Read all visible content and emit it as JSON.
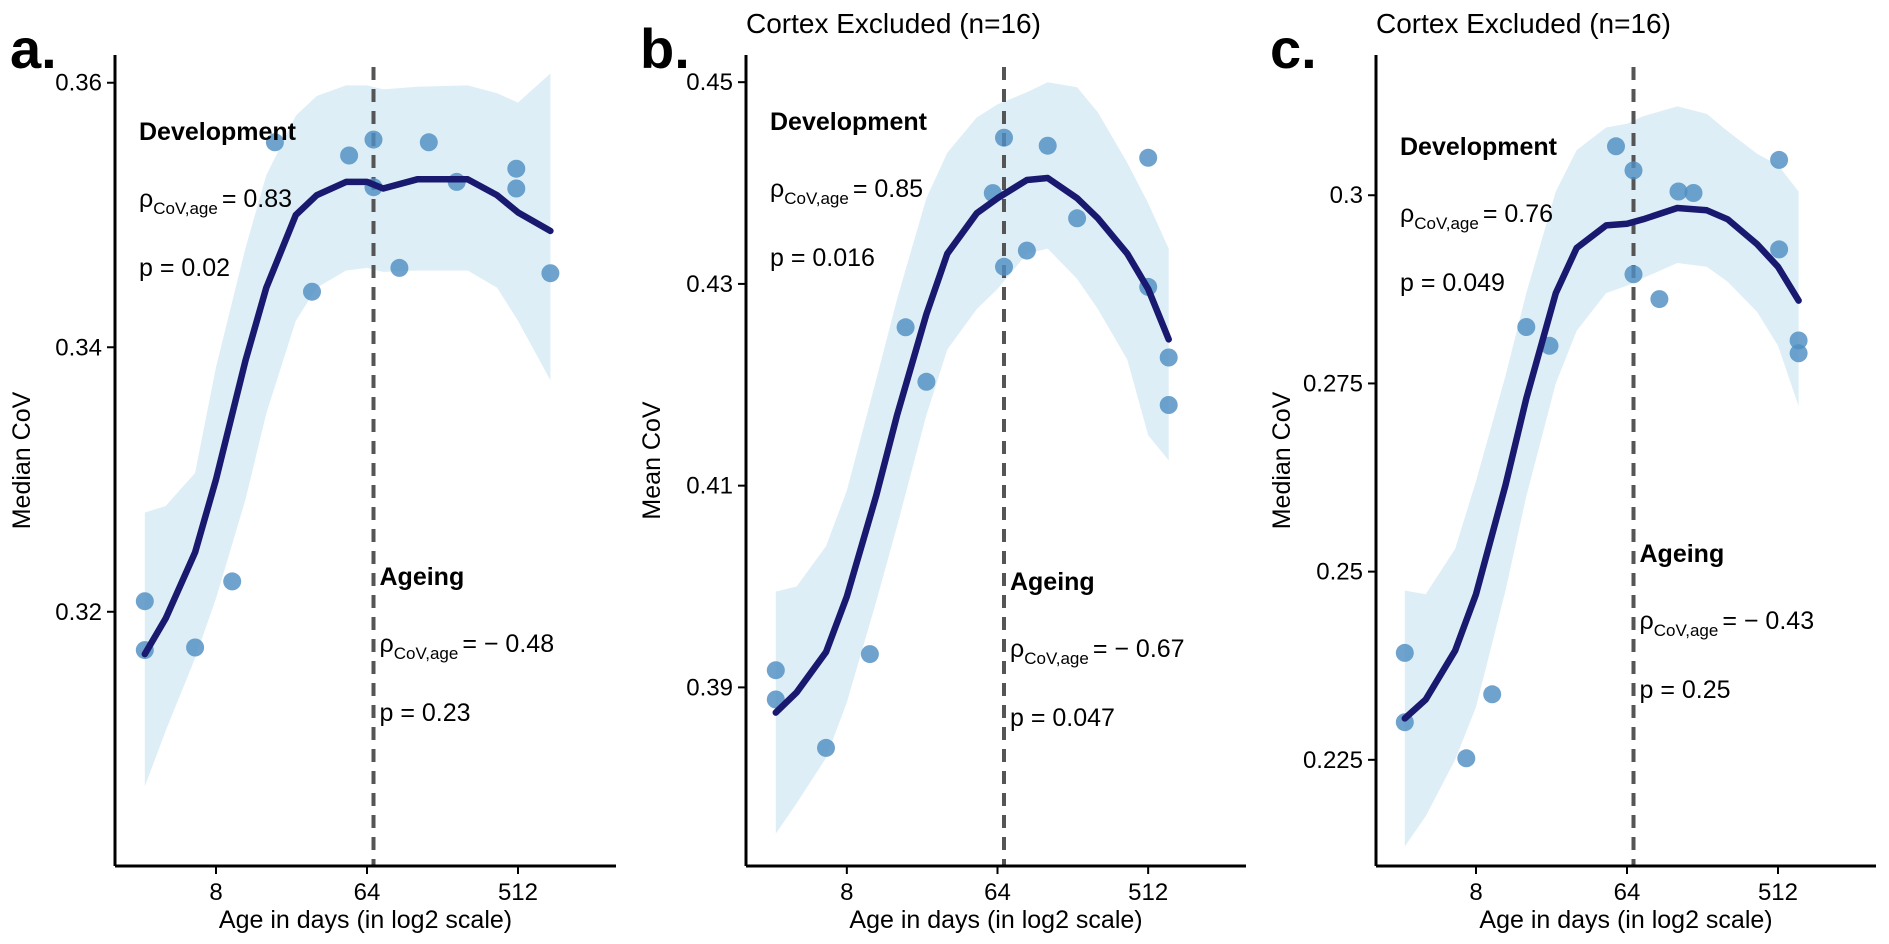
{
  "chart_data": [
    {
      "type": "scatter",
      "panel_label": "a.",
      "title": "",
      "xlabel": "Age in days (in log2 scale)",
      "ylabel": "Median CoV",
      "x_scale": "log2",
      "xticks": [
        8,
        64,
        512
      ],
      "yticks": [
        0.32,
        0.34,
        0.36
      ],
      "ylim": [
        0.3035,
        0.3624
      ],
      "xlim_log2": [
        1.45,
        10.55
      ],
      "grid": false,
      "vline_x": 70,
      "points": [
        {
          "x": 3,
          "y": 0.3208
        },
        {
          "x": 3,
          "y": 0.3171
        },
        {
          "x": 6,
          "y": 0.3173
        },
        {
          "x": 10,
          "y": 0.3223
        },
        {
          "x": 18,
          "y": 0.3555
        },
        {
          "x": 30,
          "y": 0.3442
        },
        {
          "x": 50,
          "y": 0.3545
        },
        {
          "x": 70,
          "y": 0.3557
        },
        {
          "x": 70,
          "y": 0.3521
        },
        {
          "x": 100,
          "y": 0.346
        },
        {
          "x": 150,
          "y": 0.3555
        },
        {
          "x": 220,
          "y": 0.3525
        },
        {
          "x": 500,
          "y": 0.3535
        },
        {
          "x": 500,
          "y": 0.352
        },
        {
          "x": 800,
          "y": 0.3456
        }
      ],
      "fit": [
        {
          "x": 3,
          "y": 0.3168,
          "lo": 0.3068,
          "hi": 0.3275
        },
        {
          "x": 4,
          "y": 0.3195,
          "lo": 0.311,
          "hi": 0.328
        },
        {
          "x": 6,
          "y": 0.3245,
          "lo": 0.3165,
          "hi": 0.3305
        },
        {
          "x": 8,
          "y": 0.33,
          "lo": 0.321,
          "hi": 0.3385
        },
        {
          "x": 12,
          "y": 0.339,
          "lo": 0.3285,
          "hi": 0.3475
        },
        {
          "x": 16,
          "y": 0.3445,
          "lo": 0.335,
          "hi": 0.353
        },
        {
          "x": 24,
          "y": 0.35,
          "lo": 0.342,
          "hi": 0.3575
        },
        {
          "x": 32,
          "y": 0.3515,
          "lo": 0.3445,
          "hi": 0.359
        },
        {
          "x": 48,
          "y": 0.3525,
          "lo": 0.3458,
          "hi": 0.3598
        },
        {
          "x": 64,
          "y": 0.3525,
          "lo": 0.346,
          "hi": 0.3598
        },
        {
          "x": 80,
          "y": 0.352,
          "lo": 0.3457,
          "hi": 0.3595
        },
        {
          "x": 128,
          "y": 0.3527,
          "lo": 0.3458,
          "hi": 0.3597
        },
        {
          "x": 256,
          "y": 0.3527,
          "lo": 0.3458,
          "hi": 0.3598
        },
        {
          "x": 384,
          "y": 0.3515,
          "lo": 0.3445,
          "hi": 0.3592
        },
        {
          "x": 512,
          "y": 0.3502,
          "lo": 0.342,
          "hi": 0.3585
        },
        {
          "x": 800,
          "y": 0.3488,
          "lo": 0.3375,
          "hi": 0.3607
        }
      ],
      "annotations": {
        "dev_title": "Development",
        "dev_rho": "= 0.83",
        "dev_p": "p = 0.02",
        "age_title": "Ageing",
        "age_rho": "= − 0.48",
        "age_p": "p = 0.23",
        "rho_symbol": "ρ",
        "rho_sub": "CoV,age"
      }
    },
    {
      "type": "scatter",
      "panel_label": "b.",
      "title": "Cortex Excluded (n=16)",
      "xlabel": "Age in days (in log2 scale)",
      "ylabel": "Mean CoV",
      "x_scale": "log2",
      "xticks": [
        8,
        64,
        512
      ],
      "yticks": [
        0.39,
        0.41,
        0.43,
        0.45
      ],
      "ylim": [
        0.3714,
        0.452
      ],
      "xlim_log2": [
        1.45,
        10.55
      ],
      "grid": false,
      "vline_x": 70,
      "points": [
        {
          "x": 3,
          "y": 0.3917
        },
        {
          "x": 3,
          "y": 0.3888
        },
        {
          "x": 6,
          "y": 0.384
        },
        {
          "x": 11,
          "y": 0.3933
        },
        {
          "x": 18,
          "y": 0.4257
        },
        {
          "x": 24,
          "y": 0.4203
        },
        {
          "x": 60,
          "y": 0.439
        },
        {
          "x": 70,
          "y": 0.4445
        },
        {
          "x": 70,
          "y": 0.4317
        },
        {
          "x": 96,
          "y": 0.4333
        },
        {
          "x": 128,
          "y": 0.4437
        },
        {
          "x": 192,
          "y": 0.4365
        },
        {
          "x": 512,
          "y": 0.4425
        },
        {
          "x": 512,
          "y": 0.4297
        },
        {
          "x": 680,
          "y": 0.4227
        },
        {
          "x": 680,
          "y": 0.418
        }
      ],
      "fit": [
        {
          "x": 3,
          "y": 0.3875,
          "lo": 0.3755,
          "hi": 0.3995
        },
        {
          "x": 4,
          "y": 0.3895,
          "lo": 0.3785,
          "hi": 0.4
        },
        {
          "x": 6,
          "y": 0.3935,
          "lo": 0.383,
          "hi": 0.404
        },
        {
          "x": 8,
          "y": 0.399,
          "lo": 0.3885,
          "hi": 0.4095
        },
        {
          "x": 12,
          "y": 0.409,
          "lo": 0.3985,
          "hi": 0.4205
        },
        {
          "x": 16,
          "y": 0.417,
          "lo": 0.406,
          "hi": 0.4285
        },
        {
          "x": 24,
          "y": 0.427,
          "lo": 0.417,
          "hi": 0.4385
        },
        {
          "x": 32,
          "y": 0.433,
          "lo": 0.4235,
          "hi": 0.443
        },
        {
          "x": 48,
          "y": 0.437,
          "lo": 0.4275,
          "hi": 0.4465
        },
        {
          "x": 64,
          "y": 0.4385,
          "lo": 0.4295,
          "hi": 0.4478
        },
        {
          "x": 96,
          "y": 0.4403,
          "lo": 0.433,
          "hi": 0.449
        },
        {
          "x": 128,
          "y": 0.4405,
          "lo": 0.4335,
          "hi": 0.45
        },
        {
          "x": 192,
          "y": 0.4385,
          "lo": 0.4305,
          "hi": 0.4495
        },
        {
          "x": 256,
          "y": 0.4365,
          "lo": 0.4275,
          "hi": 0.447
        },
        {
          "x": 384,
          "y": 0.433,
          "lo": 0.4225,
          "hi": 0.442
        },
        {
          "x": 512,
          "y": 0.4295,
          "lo": 0.415,
          "hi": 0.438
        },
        {
          "x": 680,
          "y": 0.4245,
          "lo": 0.4125,
          "hi": 0.4335
        }
      ],
      "annotations": {
        "dev_title": "Development",
        "dev_rho": "= 0.85",
        "dev_p": "p = 0.016",
        "age_title": "Ageing",
        "age_rho": "= − 0.67",
        "age_p": "p = 0.047",
        "rho_symbol": "ρ",
        "rho_sub": "CoV,age"
      }
    },
    {
      "type": "scatter",
      "panel_label": "c.",
      "title": "Cortex Excluded (n=16)",
      "xlabel": "Age in days (in log2 scale)",
      "ylabel": "Median CoV",
      "x_scale": "log2",
      "xticks": [
        8,
        64,
        512
      ],
      "yticks": [
        0.225,
        0.25,
        0.275,
        0.3
      ],
      "ylim": [
        0.2097,
        0.3177
      ],
      "xlim_log2": [
        1.45,
        10.55
      ],
      "grid": false,
      "vline_x": 70,
      "points": [
        {
          "x": 3,
          "y": 0.2392
        },
        {
          "x": 3,
          "y": 0.23
        },
        {
          "x": 7,
          "y": 0.2252
        },
        {
          "x": 10,
          "y": 0.2337
        },
        {
          "x": 16,
          "y": 0.2825
        },
        {
          "x": 22,
          "y": 0.28
        },
        {
          "x": 55,
          "y": 0.3065
        },
        {
          "x": 70,
          "y": 0.3033
        },
        {
          "x": 70,
          "y": 0.2895
        },
        {
          "x": 100,
          "y": 0.2862
        },
        {
          "x": 130,
          "y": 0.3005
        },
        {
          "x": 160,
          "y": 0.3003
        },
        {
          "x": 520,
          "y": 0.3047
        },
        {
          "x": 520,
          "y": 0.2928
        },
        {
          "x": 680,
          "y": 0.2807
        },
        {
          "x": 680,
          "y": 0.279
        }
      ],
      "fit": [
        {
          "x": 3,
          "y": 0.2305,
          "lo": 0.2135,
          "hi": 0.2475
        },
        {
          "x": 4,
          "y": 0.233,
          "lo": 0.2175,
          "hi": 0.247
        },
        {
          "x": 6,
          "y": 0.2395,
          "lo": 0.225,
          "hi": 0.253
        },
        {
          "x": 8,
          "y": 0.247,
          "lo": 0.232,
          "hi": 0.262
        },
        {
          "x": 12,
          "y": 0.2615,
          "lo": 0.2475,
          "hi": 0.276
        },
        {
          "x": 16,
          "y": 0.273,
          "lo": 0.26,
          "hi": 0.287
        },
        {
          "x": 24,
          "y": 0.287,
          "lo": 0.275,
          "hi": 0.3005
        },
        {
          "x": 32,
          "y": 0.293,
          "lo": 0.282,
          "hi": 0.306
        },
        {
          "x": 48,
          "y": 0.296,
          "lo": 0.287,
          "hi": 0.309
        },
        {
          "x": 64,
          "y": 0.2962,
          "lo": 0.288,
          "hi": 0.3095
        },
        {
          "x": 80,
          "y": 0.2968,
          "lo": 0.289,
          "hi": 0.3105
        },
        {
          "x": 128,
          "y": 0.2983,
          "lo": 0.291,
          "hi": 0.3118
        },
        {
          "x": 192,
          "y": 0.298,
          "lo": 0.2905,
          "hi": 0.3108
        },
        {
          "x": 256,
          "y": 0.2968,
          "lo": 0.2885,
          "hi": 0.3085
        },
        {
          "x": 384,
          "y": 0.2935,
          "lo": 0.2845,
          "hi": 0.3055
        },
        {
          "x": 512,
          "y": 0.2905,
          "lo": 0.28,
          "hi": 0.304
        },
        {
          "x": 680,
          "y": 0.286,
          "lo": 0.272,
          "hi": 0.3005
        }
      ],
      "annotations": {
        "dev_title": "Development",
        "dev_rho": "= 0.76",
        "dev_p": "p = 0.049",
        "age_title": "Ageing",
        "age_rho": "= − 0.43",
        "age_p": "p = 0.25",
        "rho_symbol": "ρ",
        "rho_sub": "CoV,age"
      }
    }
  ],
  "colors": {
    "point": "#4f8fc2",
    "fit_line": "#191970",
    "ribbon": "#ddeef6",
    "vline": "#555555",
    "axis": "#000000"
  }
}
